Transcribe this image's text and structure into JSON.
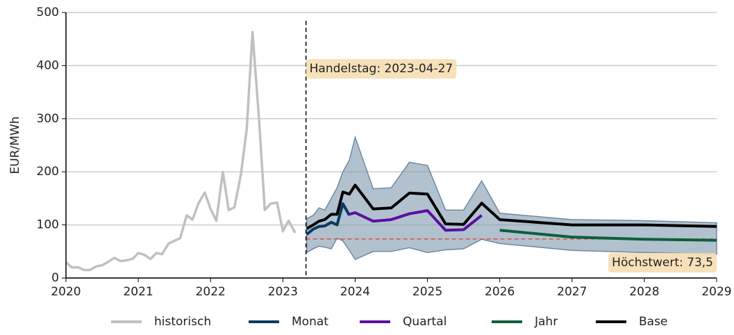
{
  "chart_data": {
    "type": "line",
    "y_label": "EUR/MWh",
    "xlim": [
      2020,
      2029
    ],
    "xticks": [
      2020,
      2021,
      2022,
      2023,
      2024,
      2025,
      2026,
      2027,
      2028,
      2029
    ],
    "ylim": [
      0,
      500
    ],
    "yticks": [
      0,
      100,
      200,
      300,
      400,
      500
    ],
    "grid": true,
    "legend": "bottom",
    "band": {
      "color": "#7f97ae",
      "x": [
        2023.33,
        2023.42,
        2023.5,
        2023.58,
        2023.67,
        2023.75,
        2023.83,
        2023.92,
        2024.0,
        2024.25,
        2024.5,
        2024.75,
        2025.0,
        2025.25,
        2025.5,
        2025.75,
        2026.0,
        2027.0,
        2028.0,
        2029.0
      ],
      "upper": [
        112,
        118,
        132,
        128,
        150,
        170,
        200,
        222,
        265,
        168,
        170,
        218,
        212,
        128,
        128,
        183,
        122,
        110,
        108,
        104
      ],
      "lower": [
        48,
        55,
        60,
        58,
        55,
        75,
        70,
        52,
        35,
        50,
        50,
        57,
        48,
        53,
        55,
        73,
        65,
        52,
        48,
        45
      ]
    },
    "threshold": {
      "value": 73.5,
      "label": "Höchstwert: 73,5",
      "color": "#d9534f"
    },
    "trade_date": {
      "value": 2023.32,
      "label": "Handelstag: 2023-04-27"
    },
    "series": [
      {
        "name": "historisch",
        "color": "#c0c0c0",
        "x": [
          2020.0,
          2020.08,
          2020.17,
          2020.25,
          2020.33,
          2020.42,
          2020.5,
          2020.58,
          2020.67,
          2020.75,
          2020.83,
          2020.92,
          2021.0,
          2021.08,
          2021.17,
          2021.25,
          2021.33,
          2021.42,
          2021.5,
          2021.58,
          2021.67,
          2021.75,
          2021.83,
          2021.92,
          2022.0,
          2022.08,
          2022.17,
          2022.25,
          2022.33,
          2022.42,
          2022.5,
          2022.58,
          2022.67,
          2022.75,
          2022.83,
          2022.92,
          2023.0,
          2023.08,
          2023.17
        ],
        "values": [
          30,
          20,
          20,
          15,
          15,
          22,
          24,
          30,
          38,
          32,
          33,
          36,
          47,
          44,
          36,
          47,
          45,
          65,
          70,
          75,
          118,
          110,
          140,
          161,
          130,
          108,
          200,
          128,
          133,
          195,
          280,
          463,
          300,
          128,
          140,
          142,
          88,
          108,
          85
        ]
      },
      {
        "name": "Monat",
        "color": "#0b3a5e",
        "x": [
          2023.33,
          2023.42,
          2023.5,
          2023.58,
          2023.67,
          2023.75,
          2023.83,
          2023.92
        ],
        "values": [
          82,
          92,
          97,
          98,
          105,
          100,
          140,
          118
        ]
      },
      {
        "name": "Quartal",
        "color": "#5a0fa0",
        "x": [
          2023.92,
          2024.0,
          2024.25,
          2024.5,
          2024.75,
          2025.0,
          2025.25,
          2025.5,
          2025.75
        ],
        "values": [
          120,
          123,
          107,
          110,
          121,
          127,
          90,
          91,
          118
        ]
      },
      {
        "name": "Jahr",
        "color": "#0e5e3a",
        "x": [
          2026.0,
          2027.0,
          2028.0,
          2029.0
        ],
        "values": [
          90,
          77,
          73,
          71
        ]
      },
      {
        "name": "Base",
        "color": "#000000",
        "x": [
          2023.33,
          2023.42,
          2023.5,
          2023.58,
          2023.67,
          2023.75,
          2023.83,
          2023.92,
          2024.0,
          2024.25,
          2024.5,
          2024.75,
          2025.0,
          2025.25,
          2025.5,
          2025.75,
          2026.0,
          2027.0,
          2028.0,
          2029.0
        ],
        "values": [
          93,
          100,
          107,
          110,
          120,
          120,
          162,
          158,
          175,
          130,
          132,
          160,
          158,
          102,
          101,
          141,
          110,
          100,
          100,
          97
        ]
      }
    ]
  }
}
